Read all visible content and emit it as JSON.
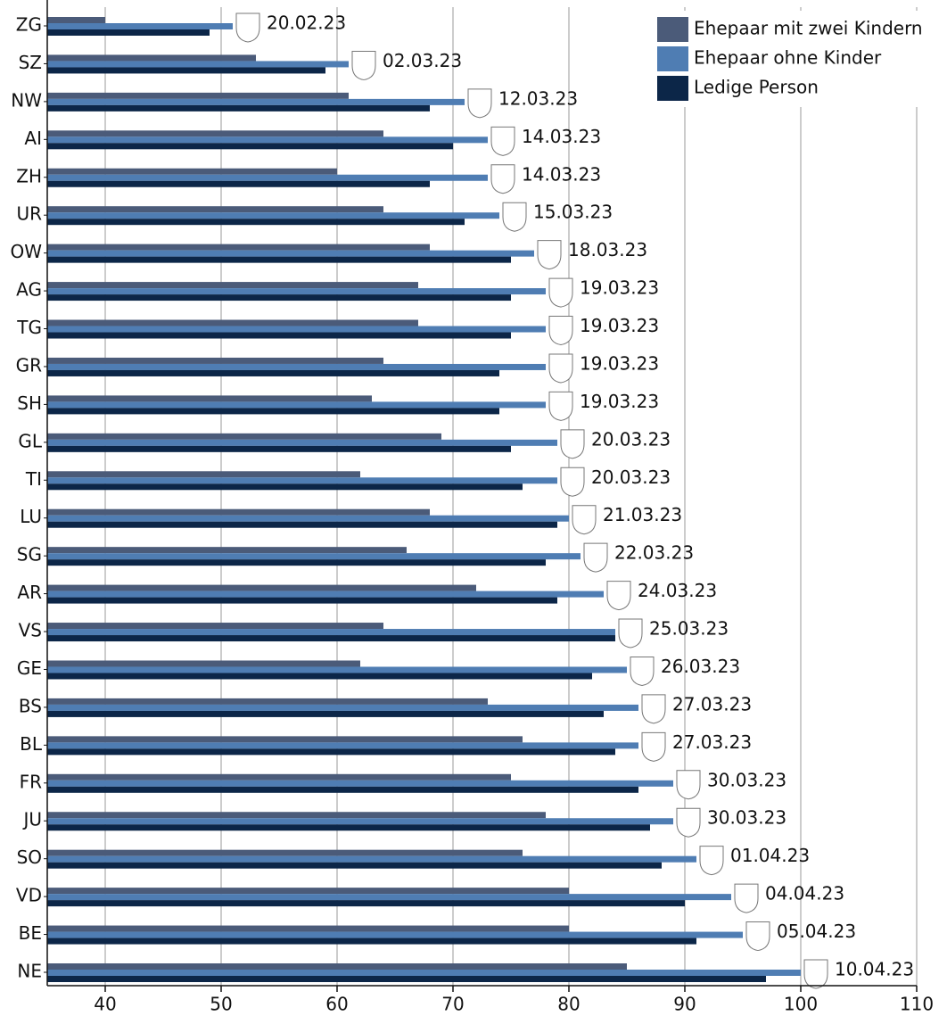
{
  "chart_data": {
    "type": "barh",
    "categories": [
      "ZG",
      "SZ",
      "NW",
      "AI",
      "ZH",
      "UR",
      "OW",
      "AG",
      "TG",
      "GR",
      "SH",
      "GL",
      "TI",
      "LU",
      "SG",
      "AR",
      "VS",
      "GE",
      "BS",
      "BL",
      "FR",
      "JU",
      "SO",
      "VD",
      "BE",
      "NE"
    ],
    "series": [
      {
        "name": "Ehepaar mit zwei Kindern",
        "color": "#4b5b79",
        "values": [
          40,
          53,
          61,
          64,
          60,
          64,
          68,
          67,
          67,
          64,
          63,
          69,
          62,
          68,
          66,
          72,
          64,
          62,
          73,
          76,
          75,
          78,
          76,
          80,
          80,
          85
        ]
      },
      {
        "name": "Ehepaar ohne Kinder",
        "color": "#4f7db3",
        "values": [
          51,
          61,
          71,
          73,
          73,
          74,
          77,
          78,
          78,
          78,
          78,
          79,
          79,
          80,
          81,
          83,
          84,
          85,
          86,
          86,
          89,
          89,
          91,
          94,
          95,
          100
        ],
        "value_labels": [
          "20.02.23",
          "02.03.23",
          "12.03.23",
          "14.03.23",
          "14.03.23",
          "15.03.23",
          "18.03.23",
          "19.03.23",
          "19.03.23",
          "19.03.23",
          "19.03.23",
          "20.03.23",
          "20.03.23",
          "21.03.23",
          "22.03.23",
          "24.03.23",
          "25.03.23",
          "26.03.23",
          "27.03.23",
          "27.03.23",
          "30.03.23",
          "30.03.23",
          "01.04.23",
          "04.04.23",
          "05.04.23",
          "10.04.23"
        ]
      },
      {
        "name": "Ledige Person",
        "color": "#0c2648",
        "values": [
          49,
          59,
          68,
          70,
          68,
          71,
          75,
          75,
          75,
          74,
          74,
          75,
          76,
          79,
          78,
          79,
          84,
          82,
          83,
          84,
          86,
          87,
          88,
          90,
          91,
          97
        ]
      }
    ],
    "xlim": [
      35,
      110
    ],
    "xticks": [
      40,
      50,
      60,
      70,
      80,
      90,
      100,
      110
    ],
    "grid": true,
    "legend": "top-right"
  }
}
